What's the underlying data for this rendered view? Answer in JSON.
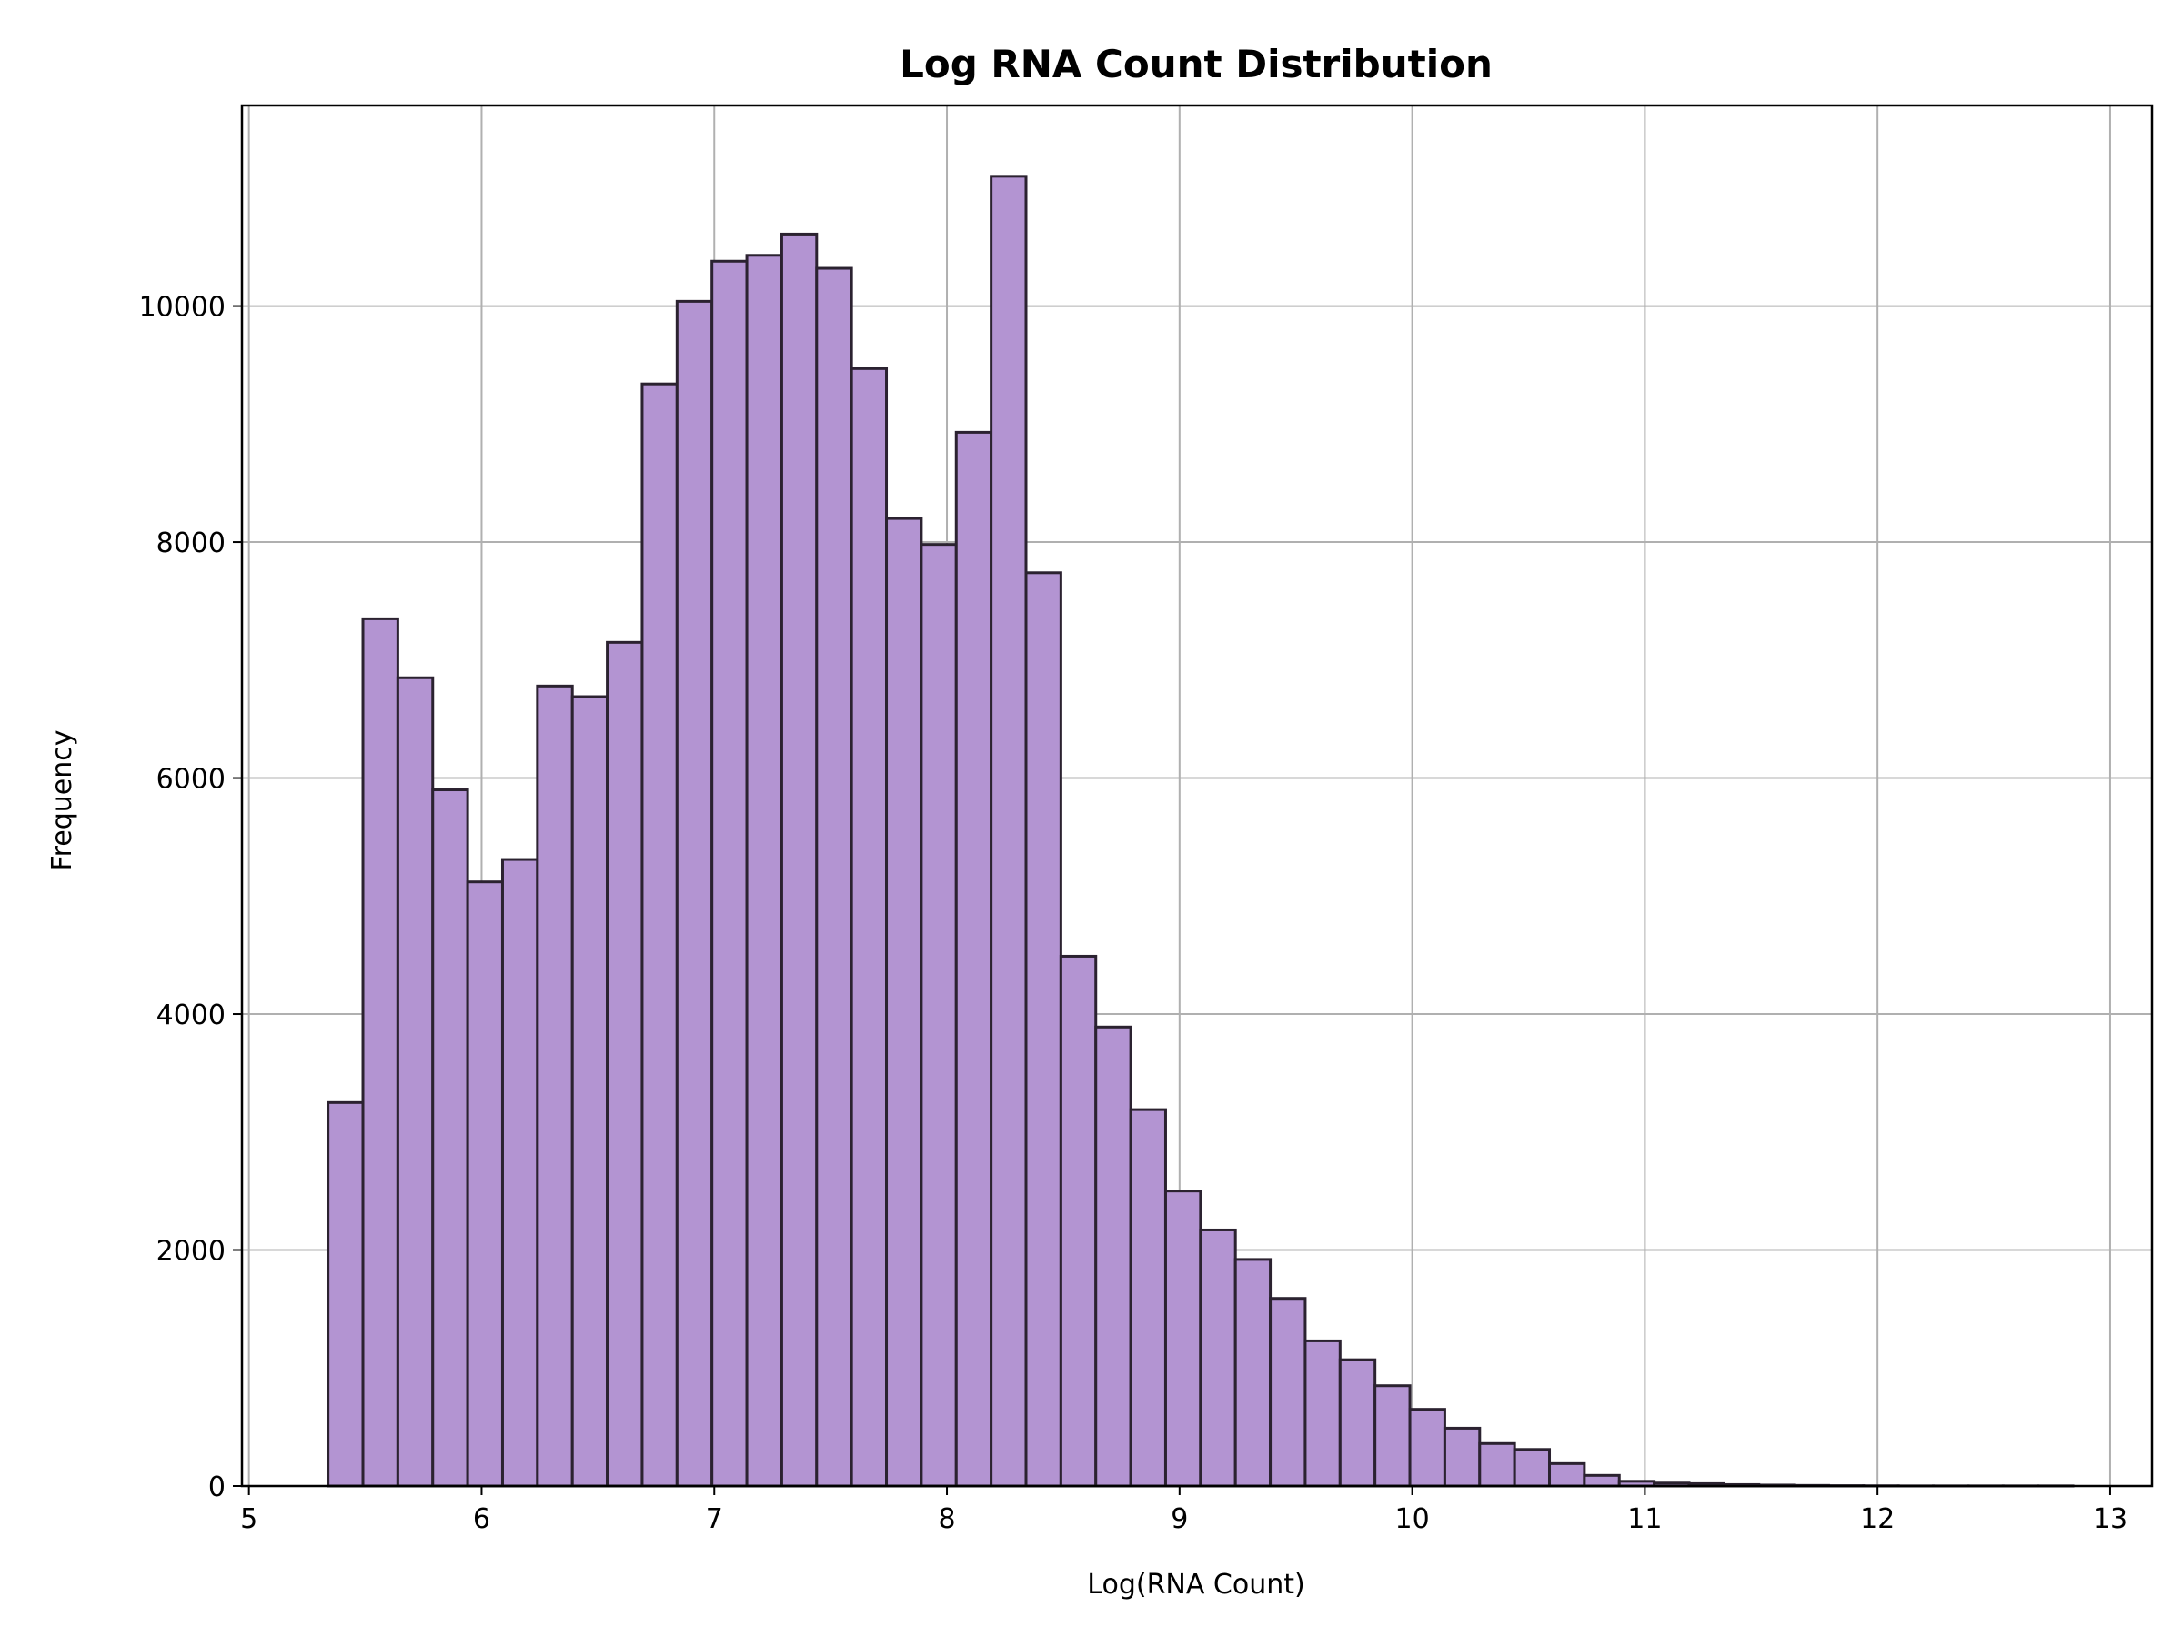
{
  "chart_data": {
    "type": "bar",
    "subtype": "histogram",
    "title": "Log RNA Count Distribution",
    "xlabel": "Log(RNA Count)",
    "ylabel": "Frequency",
    "xlim": [
      4.97,
      13.18
    ],
    "ylim": [
      0,
      11700
    ],
    "xticks": [
      5,
      6,
      7,
      8,
      9,
      10,
      11,
      12,
      13
    ],
    "yticks": [
      0,
      2000,
      4000,
      6000,
      8000,
      10000
    ],
    "grid": true,
    "bar_color": "#b394d2",
    "edge_color": "#2b2230",
    "bin_start": 5.34,
    "bin_width": 0.15,
    "values": [
      3250,
      7350,
      6850,
      5900,
      5120,
      5310,
      6780,
      6690,
      7150,
      9340,
      10040,
      10380,
      10430,
      10610,
      10320,
      9470,
      8200,
      7980,
      8930,
      11100,
      7740,
      4490,
      3890,
      3190,
      2500,
      2170,
      1920,
      1590,
      1230,
      1070,
      850,
      650,
      490,
      360,
      310,
      190,
      90,
      40,
      25,
      20,
      12,
      8,
      5,
      3,
      2,
      1,
      1,
      1,
      1,
      1
    ]
  }
}
